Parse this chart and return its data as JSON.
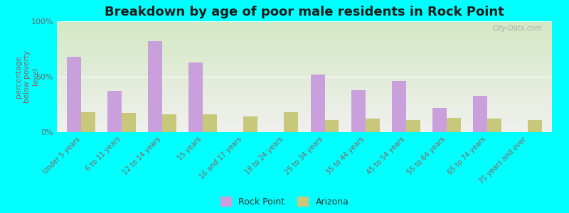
{
  "title": "Breakdown by age of poor male residents in Rock Point",
  "ylabel": "percentage\nbelow poverty\nlevel",
  "categories": [
    "Under 5 years",
    "6 to 11 years",
    "12 to 14 years",
    "15 years",
    "16 and 17 years",
    "18 to 24 years",
    "25 to 34 years",
    "35 to 44 years",
    "45 to 54 years",
    "55 to 64 years",
    "65 to 74 years",
    "75 years and over"
  ],
  "rock_point": [
    68,
    37,
    82,
    63,
    0,
    0,
    52,
    38,
    46,
    22,
    33,
    0
  ],
  "arizona": [
    18,
    17,
    16,
    16,
    14,
    18,
    11,
    12,
    11,
    13,
    12,
    11
  ],
  "rock_point_color": "#c9a0dc",
  "arizona_color": "#c8c87a",
  "bg_color": "#00ffff",
  "plot_bg_top": "#f0f0ee",
  "plot_bg_bottom": "#d4e8c4",
  "ylim": [
    0,
    100
  ],
  "yticks": [
    0,
    50,
    100
  ],
  "ytick_labels": [
    "0%",
    "50%",
    "100%"
  ],
  "bar_width": 0.35,
  "title_fontsize": 13,
  "legend_labels": [
    "Rock Point",
    "Arizona"
  ],
  "xtick_color": "#8b6060",
  "ytick_color": "#666666"
}
